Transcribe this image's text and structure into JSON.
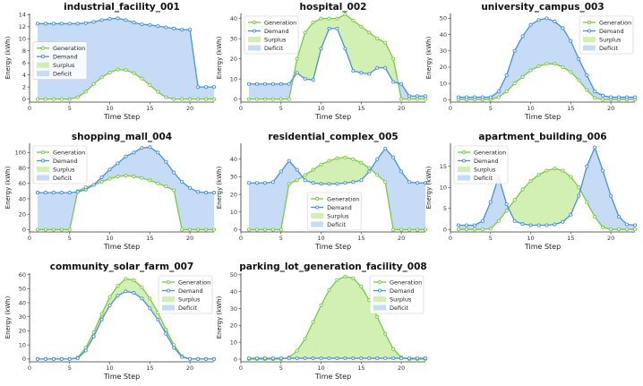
{
  "legend_labels": {
    "generation": "Generation",
    "demand": "Demand",
    "surplus": "Surplus",
    "deficit": "Deficit"
  },
  "colors": {
    "generation": "#7ac943",
    "demand": "#4a90d9",
    "surplus": "#d3f0b4",
    "deficit": "#c6dbf5"
  },
  "chart_data": [
    {
      "type": "line",
      "title": "industrial_facility_001",
      "xlabel": "Time Step",
      "ylabel": "Energy (kWh)",
      "x": [
        1,
        2,
        3,
        4,
        5,
        6,
        7,
        8,
        9,
        10,
        11,
        12,
        13,
        14,
        15,
        16,
        17,
        18,
        19,
        20,
        21,
        22,
        23
      ],
      "ylim": [
        -0.5,
        14.2
      ],
      "yticks": [
        0,
        2,
        4,
        6,
        8,
        10,
        12,
        14
      ],
      "xticks": [
        0,
        5,
        10,
        15,
        20
      ],
      "legend": "middle-left",
      "series": [
        {
          "name": "Generation",
          "values": [
            0,
            0,
            0,
            0,
            0,
            0.3,
            1.2,
            2.5,
            3.6,
            4.4,
            4.9,
            4.8,
            4.3,
            3.4,
            2.3,
            1.2,
            0.3,
            0,
            0,
            0,
            0,
            0,
            0
          ]
        },
        {
          "name": "Demand",
          "values": [
            12.5,
            12.5,
            12.5,
            12.5,
            12.5,
            12.5,
            12.6,
            12.8,
            13.1,
            13.3,
            13.4,
            13.1,
            12.7,
            12.4,
            12.3,
            12.1,
            11.9,
            11.7,
            11.5,
            11.5,
            2.0,
            2.0,
            2.0
          ]
        }
      ]
    },
    {
      "type": "line",
      "title": "hospital_002",
      "xlabel": "Time Step",
      "ylabel": "Energy (kWh)",
      "x": [
        1,
        2,
        3,
        4,
        5,
        6,
        7,
        8,
        9,
        10,
        11,
        12,
        13,
        14,
        15,
        16,
        17,
        18,
        19,
        20,
        21,
        22,
        23
      ],
      "ylim": [
        -1.5,
        42.5
      ],
      "yticks": [
        0,
        10,
        20,
        30,
        40
      ],
      "xticks": [
        0,
        5,
        10,
        15,
        20
      ],
      "legend": "top-left",
      "series": [
        {
          "name": "Generation",
          "values": [
            0,
            0,
            0,
            0,
            0,
            0,
            20,
            33,
            38,
            40,
            40,
            40,
            42,
            39,
            36,
            33,
            30,
            28,
            20,
            0,
            0,
            0,
            0
          ]
        },
        {
          "name": "Demand",
          "values": [
            7.5,
            7.5,
            7.5,
            7.5,
            7.5,
            7.5,
            13,
            10,
            9.5,
            25,
            35,
            35,
            25,
            14,
            13,
            12.5,
            15.5,
            15.5,
            8.5,
            7.5,
            1.5,
            1.5,
            1.5
          ]
        }
      ]
    },
    {
      "type": "line",
      "title": "university_campus_003",
      "xlabel": "Time Step",
      "ylabel": "Energy (kWh)",
      "x": [
        1,
        2,
        3,
        4,
        5,
        6,
        7,
        8,
        9,
        10,
        11,
        12,
        13,
        14,
        15,
        16,
        17,
        18,
        19,
        20,
        21,
        22,
        23
      ],
      "ylim": [
        -1.5,
        53
      ],
      "yticks": [
        0,
        10,
        20,
        30,
        40,
        50
      ],
      "xticks": [
        0,
        5,
        10,
        15,
        20
      ],
      "legend": "top-right",
      "series": [
        {
          "name": "Generation",
          "values": [
            0,
            0,
            0,
            0,
            0,
            1.5,
            5,
            10,
            14,
            18,
            20.5,
            22,
            22,
            20,
            17,
            12,
            6,
            1,
            0,
            0,
            0,
            0,
            0
          ]
        },
        {
          "name": "Demand",
          "values": [
            1.5,
            1.5,
            1.5,
            1.5,
            1.5,
            5,
            15,
            30,
            39,
            46,
            49,
            50,
            48,
            44,
            36,
            25,
            15,
            5,
            2.5,
            1.5,
            1.5,
            1.5,
            1.5
          ]
        }
      ]
    },
    {
      "type": "line",
      "title": "shopping_mall_004",
      "xlabel": "Time Step",
      "ylabel": "Energy (kWh)",
      "x": [
        1,
        2,
        3,
        4,
        5,
        6,
        7,
        8,
        9,
        10,
        11,
        12,
        13,
        14,
        15,
        16,
        17,
        18,
        19,
        20,
        21,
        22,
        23
      ],
      "ylim": [
        -3,
        112
      ],
      "yticks": [
        0,
        20,
        40,
        60,
        80,
        100
      ],
      "xticks": [
        0,
        5,
        10,
        15,
        20
      ],
      "legend": "top-left",
      "series": [
        {
          "name": "Generation",
          "values": [
            0,
            0,
            0,
            0,
            0,
            50,
            55,
            58,
            62,
            66,
            69,
            70,
            69,
            67,
            64,
            60,
            56,
            51,
            0,
            0,
            0,
            0,
            0
          ]
        },
        {
          "name": "Demand",
          "values": [
            48,
            48,
            48,
            48,
            48,
            49,
            52,
            58,
            68,
            78,
            86,
            95,
            100,
            106,
            107,
            100,
            88,
            74,
            62,
            54,
            49,
            48,
            48
          ]
        }
      ]
    },
    {
      "type": "line",
      "title": "residential_complex_005",
      "xlabel": "Time Step",
      "ylabel": "Energy (kWh)",
      "x": [
        1,
        2,
        3,
        4,
        5,
        6,
        7,
        8,
        9,
        10,
        11,
        12,
        13,
        14,
        15,
        16,
        17,
        18,
        19,
        20,
        21,
        22,
        23
      ],
      "ylim": [
        -1.3,
        49
      ],
      "yticks": [
        0,
        10,
        20,
        30,
        40
      ],
      "xticks": [
        0,
        5,
        10,
        15,
        20
      ],
      "legend": "bottom-center",
      "series": [
        {
          "name": "Generation",
          "values": [
            0,
            0,
            0,
            0,
            0,
            26,
            28,
            31,
            34,
            37,
            39,
            40.5,
            41,
            40,
            38,
            35,
            31,
            27,
            0,
            0,
            0,
            0,
            0
          ]
        },
        {
          "name": "Demand",
          "values": [
            26.5,
            26.5,
            26.5,
            27,
            33,
            39,
            34,
            28,
            26.5,
            26,
            26,
            26,
            26.5,
            27,
            28,
            33,
            40,
            46,
            41,
            33,
            27,
            26.5,
            26.5
          ]
        }
      ]
    },
    {
      "type": "line",
      "title": "apartment_building_006",
      "xlabel": "Time Step",
      "ylabel": "Energy (kWh)",
      "x": [
        1,
        2,
        3,
        4,
        5,
        6,
        7,
        8,
        9,
        10,
        11,
        12,
        13,
        14,
        15,
        16,
        17,
        18,
        19,
        20,
        21,
        22,
        23
      ],
      "ylim": [
        -0.6,
        20.5
      ],
      "yticks": [
        0,
        5,
        10,
        15
      ],
      "xticks": [
        0,
        5,
        10,
        15,
        20
      ],
      "legend": "top-left",
      "series": [
        {
          "name": "Generation",
          "values": [
            0,
            0,
            0,
            0,
            0.2,
            2,
            4.5,
            7,
            9.5,
            11.5,
            13,
            14,
            14.5,
            14,
            12.5,
            10,
            6.5,
            3,
            0.5,
            0,
            0,
            0,
            0
          ]
        },
        {
          "name": "Demand",
          "values": [
            1,
            1,
            1,
            2,
            6.5,
            12.5,
            6,
            2,
            1.3,
            1,
            1,
            1,
            1.2,
            1.8,
            3.5,
            8,
            15,
            19.5,
            14,
            8,
            3,
            1.2,
            1
          ]
        }
      ]
    },
    {
      "type": "line",
      "title": "community_solar_farm_007",
      "xlabel": "Time Step",
      "ylabel": "Energy (kWh)",
      "x": [
        1,
        2,
        3,
        4,
        5,
        6,
        7,
        8,
        9,
        10,
        11,
        12,
        13,
        14,
        15,
        16,
        17,
        18,
        19,
        20,
        21,
        22,
        23
      ],
      "ylim": [
        -2,
        61
      ],
      "yticks": [
        0,
        10,
        20,
        30,
        40,
        50,
        60
      ],
      "xticks": [
        0,
        5,
        10,
        15,
        20
      ],
      "legend": "top-right",
      "series": [
        {
          "name": "Generation",
          "values": [
            0,
            0,
            0,
            0,
            0,
            1,
            8,
            19,
            32,
            44,
            52,
            57,
            56,
            51,
            43,
            33,
            21,
            10,
            2,
            0,
            0,
            0,
            0
          ]
        },
        {
          "name": "Demand",
          "values": [
            0,
            0,
            0,
            0,
            0,
            0.5,
            6,
            16,
            28,
            38,
            45,
            48,
            47,
            43,
            36,
            28,
            18,
            8,
            1.5,
            0,
            0,
            0,
            0
          ]
        }
      ]
    },
    {
      "type": "line",
      "title": "parking_lot_generation_facility_008",
      "xlabel": "Time Step",
      "ylabel": "Energy (kWh)",
      "x": [
        1,
        2,
        3,
        4,
        5,
        6,
        7,
        8,
        9,
        10,
        11,
        12,
        13,
        14,
        15,
        16,
        17,
        18,
        19,
        20,
        21,
        22,
        23
      ],
      "ylim": [
        -1.6,
        51
      ],
      "yticks": [
        0,
        10,
        20,
        30,
        40,
        50
      ],
      "xticks": [
        0,
        5,
        10,
        15,
        20
      ],
      "legend": "top-right",
      "series": [
        {
          "name": "Generation",
          "values": [
            0,
            0,
            0,
            0,
            0,
            1,
            5,
            12,
            22,
            32,
            41,
            47,
            49,
            48,
            43,
            35,
            25,
            15,
            6,
            1,
            0,
            0,
            0
          ]
        },
        {
          "name": "Demand",
          "values": [
            0.5,
            0.5,
            0.5,
            0.5,
            0.5,
            0.5,
            0.5,
            0.5,
            0.5,
            0.5,
            0.5,
            0.5,
            0.5,
            0.5,
            0.5,
            0.5,
            0.5,
            0.5,
            0.5,
            0.5,
            0.5,
            0.5,
            0.5
          ]
        }
      ]
    }
  ]
}
